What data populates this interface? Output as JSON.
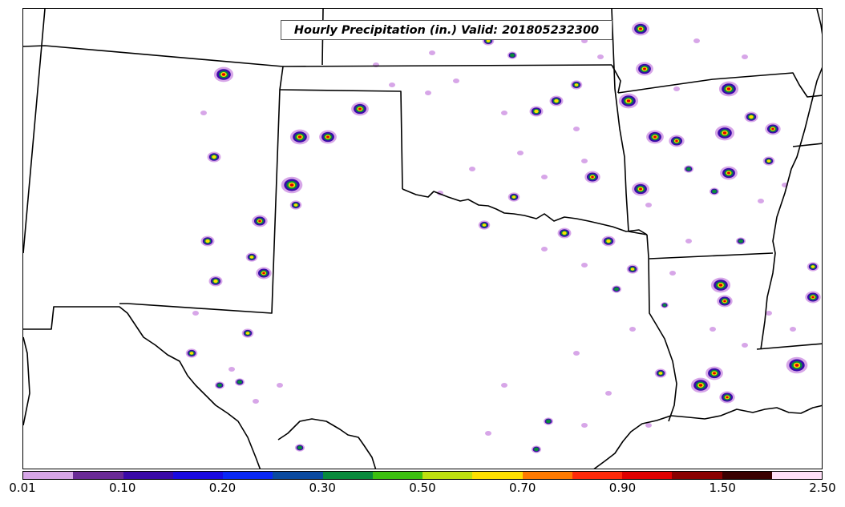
{
  "title": "Hourly Precipitation (in.) Valid: 201805232300",
  "colorbar": {
    "colors": [
      "#d7a6e8",
      "#6a2a96",
      "#3a0aa8",
      "#1a0ae0",
      "#0a28f5",
      "#0a4aa0",
      "#088a3c",
      "#3cc010",
      "#bee010",
      "#ffe000",
      "#ff7a00",
      "#ff2a0a",
      "#e00000",
      "#8a0000",
      "#3a0000",
      "#ffe0f8"
    ],
    "labels": [
      "0.01",
      "0.10",
      "0.20",
      "0.30",
      "0.50",
      "0.70",
      "0.90",
      "1.50",
      "2.50"
    ]
  },
  "icons": {
    "map": "precipitation-map",
    "borders": "state-borders"
  }
}
